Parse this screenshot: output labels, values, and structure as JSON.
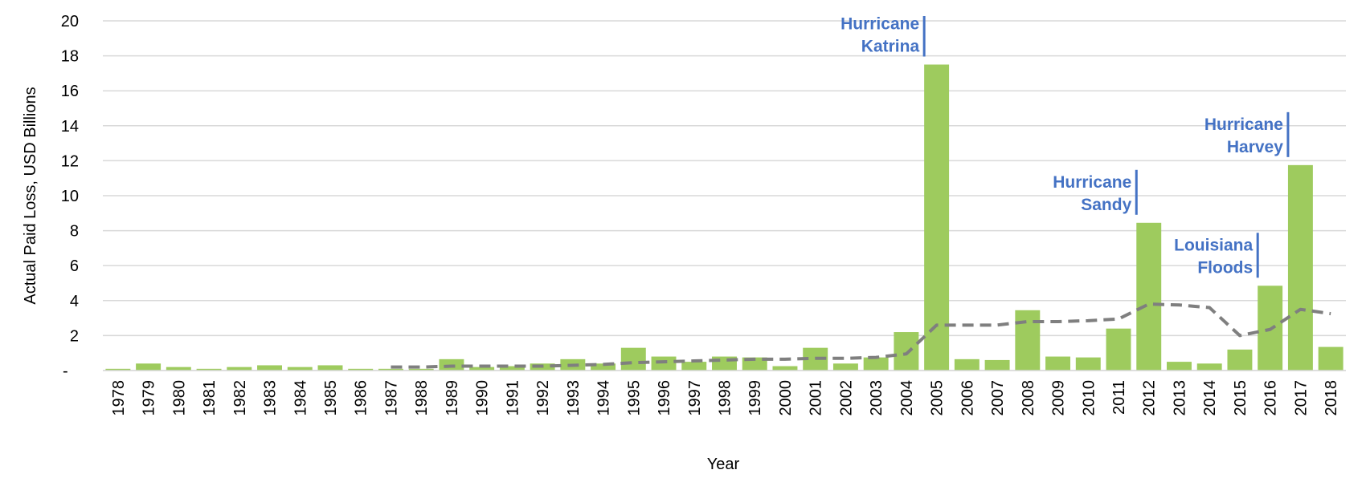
{
  "chart_data": {
    "type": "bar",
    "x_label": "Year",
    "y_label": "Actual Paid Loss, USD Billions",
    "categories": [
      "1978",
      "1979",
      "1980",
      "1981",
      "1982",
      "1983",
      "1984",
      "1985",
      "1986",
      "1987",
      "1988",
      "1989",
      "1990",
      "1991",
      "1992",
      "1993",
      "1994",
      "1995",
      "1996",
      "1997",
      "1998",
      "1999",
      "2000",
      "2001",
      "2002",
      "2003",
      "2004",
      "2005",
      "2006",
      "2007",
      "2008",
      "2009",
      "2010",
      "2011",
      "2012",
      "2013",
      "2014",
      "2015",
      "2016",
      "2017",
      "2018"
    ],
    "values": [
      0.1,
      0.4,
      0.2,
      0.1,
      0.2,
      0.3,
      0.2,
      0.3,
      0.1,
      0.1,
      0.1,
      0.65,
      0.2,
      0.25,
      0.4,
      0.65,
      0.4,
      1.3,
      0.8,
      0.5,
      0.8,
      0.75,
      0.25,
      1.3,
      0.4,
      0.75,
      2.2,
      17.5,
      0.65,
      0.6,
      3.45,
      0.8,
      0.75,
      2.4,
      8.45,
      0.5,
      0.4,
      1.2,
      4.85,
      11.75,
      1.35
    ],
    "color": "#9ecb5e",
    "series": [
      {
        "color": "#7f7f7f",
        "dashed": true,
        "values": [
          null,
          null,
          null,
          null,
          null,
          null,
          null,
          null,
          null,
          0.2,
          0.2,
          0.25,
          0.25,
          0.25,
          0.25,
          0.3,
          0.35,
          0.45,
          0.5,
          0.55,
          0.6,
          0.65,
          0.65,
          0.7,
          0.7,
          0.75,
          0.95,
          2.6,
          2.6,
          2.6,
          2.8,
          2.8,
          2.85,
          2.95,
          3.8,
          3.75,
          3.6,
          2.0,
          2.35,
          3.5,
          3.25
        ]
      }
    ],
    "ylim": [
      0,
      20
    ],
    "yticks": [
      {
        "value": 0,
        "label": "-"
      },
      2,
      4,
      6,
      8,
      10,
      12,
      14,
      16,
      18,
      20
    ],
    "grid": true,
    "annotations": [
      {
        "x": "2005",
        "lines": [
          "Hurricane",
          "Katrina"
        ],
        "color": "#4472c4"
      },
      {
        "x": "2012",
        "lines": [
          "Hurricane",
          "Sandy"
        ],
        "color": "#4472c4"
      },
      {
        "x": "2016",
        "lines": [
          "Louisiana",
          "Floods"
        ],
        "color": "#4472c4"
      },
      {
        "x": "2017",
        "lines": [
          "Hurricane",
          "Harvey"
        ],
        "color": "#4472c4"
      }
    ]
  }
}
